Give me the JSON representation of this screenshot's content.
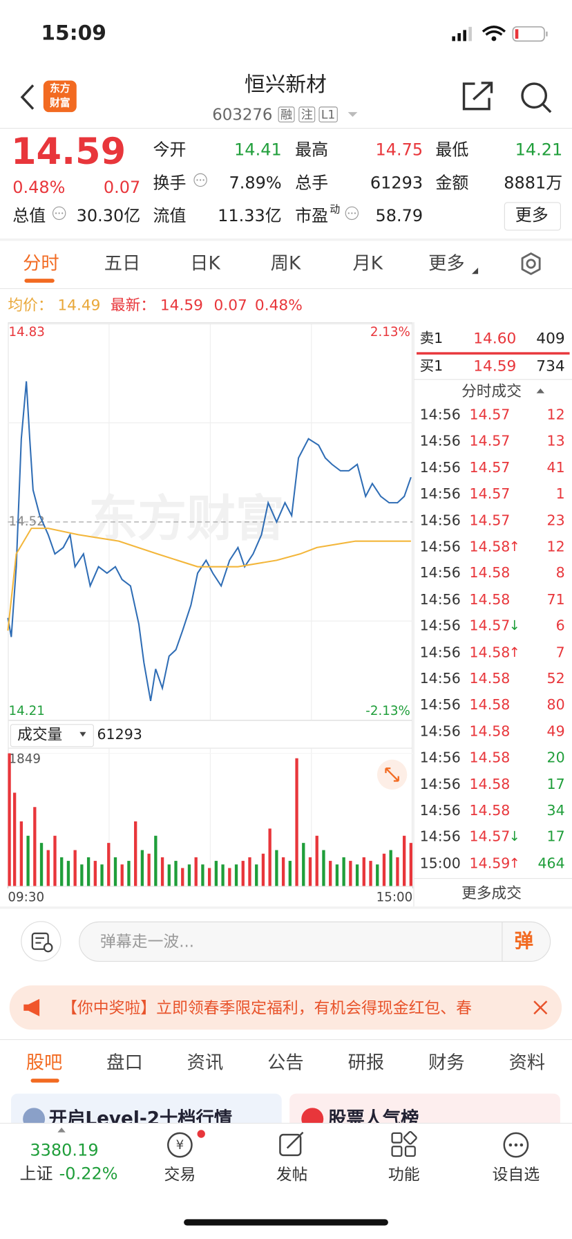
{
  "status_bar": {
    "time": "15:09"
  },
  "header": {
    "logo": [
      "东方",
      "财富"
    ],
    "title": "恒兴新材",
    "code": "603276",
    "badges": [
      "融",
      "注",
      "L1"
    ]
  },
  "quote": {
    "price": "14.59",
    "change_pct": "0.48%",
    "change": "0.07",
    "fields": [
      {
        "label": "今开",
        "value": "14.41"
      },
      {
        "label": "最高",
        "value": "14.75"
      },
      {
        "label": "最低",
        "value": "14.21"
      },
      {
        "label": "换手",
        "value": "7.89%"
      },
      {
        "label": "总手",
        "value": "61293"
      },
      {
        "label": "金额",
        "value": "8881万"
      },
      {
        "label": "总值",
        "value": "30.30亿"
      },
      {
        "label": "流值",
        "value": "11.33亿"
      },
      {
        "label": "市盈",
        "label_sup": "动",
        "value": "58.79"
      }
    ],
    "more": "更多"
  },
  "tabs": [
    "分时",
    "五日",
    "日K",
    "周K",
    "月K",
    "更多"
  ],
  "summary": {
    "avg_label": "均价：",
    "avg": "14.49",
    "last_label": "最新：",
    "last": "14.59",
    "change": "0.07",
    "change_pct": "0.48%"
  },
  "watermark": "东方财富",
  "chart_data": [
    {
      "type": "line",
      "x": [
        0,
        2,
        5,
        8,
        11,
        13,
        15,
        19,
        24,
        28,
        33,
        37,
        40,
        45,
        49,
        54,
        59,
        64,
        68,
        73,
        78,
        81,
        85,
        88,
        92,
        96,
        100,
        104,
        109,
        113,
        118,
        122,
        127,
        132,
        137,
        141,
        146,
        151,
        155,
        160,
        165,
        169,
        173,
        179,
        185,
        189,
        193,
        198,
        203,
        208,
        213,
        217,
        222,
        227,
        232,
        236,
        240
      ],
      "series": [
        {
          "color": "#2f6db5",
          "values": [
            14.37,
            14.34,
            14.45,
            14.65,
            14.74,
            14.65,
            14.57,
            14.53,
            14.5,
            14.47,
            14.48,
            14.5,
            14.45,
            14.47,
            14.42,
            14.45,
            14.44,
            14.45,
            14.43,
            14.42,
            14.36,
            14.3,
            14.24,
            14.29,
            14.26,
            14.31,
            14.32,
            14.35,
            14.39,
            14.44,
            14.46,
            14.44,
            14.42,
            14.46,
            14.48,
            14.45,
            14.47,
            14.5,
            14.55,
            14.52,
            14.55,
            14.53,
            14.62,
            14.65,
            14.64,
            14.62,
            14.61,
            14.6,
            14.6,
            14.61,
            14.56,
            14.58,
            14.56,
            14.55,
            14.55,
            14.56,
            14.59
          ]
        },
        {
          "color": "#f3b63a",
          "x": [
            0,
            5,
            14,
            24,
            42,
            66,
            89,
            113,
            137,
            160,
            174,
            184,
            207,
            240
          ],
          "values": [
            14.35,
            14.47,
            14.51,
            14.51,
            14.5,
            14.49,
            14.47,
            14.45,
            14.45,
            14.46,
            14.47,
            14.48,
            14.49,
            14.49
          ]
        }
      ],
      "xlim": [
        0,
        241
      ],
      "ylim": [
        14.21,
        14.83
      ],
      "yticks": [
        14.21,
        14.52,
        14.83
      ],
      "y2lim": [
        -2.13,
        2.13
      ],
      "y2ticks": [
        {
          "value": -2.13,
          "label": "-2.13%"
        },
        {
          "value": 2.13,
          "label": "2.13%"
        }
      ]
    },
    {
      "type": "bar",
      "title": "成交量",
      "total": "61293",
      "x": [
        0,
        4,
        8,
        12,
        16,
        20,
        24,
        28,
        32,
        36,
        40,
        44,
        48,
        52,
        56,
        60,
        64,
        68,
        72,
        76,
        80,
        84,
        88,
        92,
        96,
        100,
        104,
        108,
        112,
        116,
        120,
        124,
        128,
        132,
        136,
        140,
        144,
        148,
        152,
        156,
        160,
        164,
        168,
        172,
        176,
        180,
        184,
        188,
        192,
        196,
        200,
        204,
        208,
        212,
        216,
        220,
        224,
        228,
        232,
        236,
        240
      ],
      "values": [
        1849,
        1300,
        900,
        700,
        1100,
        600,
        500,
        700,
        400,
        350,
        500,
        300,
        400,
        350,
        300,
        600,
        400,
        300,
        350,
        900,
        500,
        450,
        700,
        400,
        300,
        350,
        250,
        300,
        400,
        300,
        250,
        350,
        300,
        250,
        300,
        350,
        400,
        300,
        450,
        800,
        500,
        400,
        350,
        1780,
        600,
        400,
        700,
        500,
        350,
        300,
        400,
        350,
        300,
        400,
        350,
        300,
        450,
        500,
        400,
        700,
        600
      ],
      "up": [
        1,
        1,
        1,
        0,
        1,
        0,
        1,
        1,
        0,
        0,
        1,
        0,
        0,
        1,
        0,
        1,
        0,
        1,
        0,
        1,
        0,
        1,
        0,
        1,
        0,
        0,
        1,
        0,
        1,
        0,
        1,
        0,
        0,
        1,
        0,
        1,
        1,
        0,
        1,
        1,
        0,
        1,
        0,
        1,
        0,
        1,
        1,
        0,
        1,
        0,
        0,
        1,
        0,
        1,
        1,
        0,
        1,
        0,
        1,
        1,
        1
      ],
      "xlim": [
        0,
        241
      ],
      "ylim": [
        0,
        1849
      ],
      "yticks": [
        1849
      ],
      "xticks": [
        {
          "value": 0,
          "label": "09:30"
        },
        {
          "value": 241,
          "label": "15:00"
        }
      ]
    }
  ],
  "order_book": {
    "sell": {
      "label": "卖1",
      "price": "14.60",
      "volume": "409"
    },
    "buy": {
      "label": "买1",
      "price": "14.59",
      "volume": "734"
    }
  },
  "trades": {
    "title": "分时成交",
    "more": "更多成交",
    "rows": [
      {
        "time": "14:56",
        "price": "14.57",
        "volume": "12",
        "color": "red"
      },
      {
        "time": "14:56",
        "price": "14.57",
        "volume": "13",
        "color": "red"
      },
      {
        "time": "14:56",
        "price": "14.57",
        "volume": "41",
        "color": "red"
      },
      {
        "time": "14:56",
        "price": "14.57",
        "volume": "1",
        "color": "red"
      },
      {
        "time": "14:56",
        "price": "14.57",
        "volume": "23",
        "color": "red"
      },
      {
        "time": "14:56",
        "price": "14.58",
        "arrow": "↑",
        "volume": "12",
        "color": "red"
      },
      {
        "time": "14:56",
        "price": "14.58",
        "volume": "8",
        "color": "red"
      },
      {
        "time": "14:56",
        "price": "14.58",
        "volume": "71",
        "color": "red"
      },
      {
        "time": "14:56",
        "price": "14.57",
        "arrow": "↓",
        "volume": "6",
        "color": "red"
      },
      {
        "time": "14:56",
        "price": "14.58",
        "arrow": "↑",
        "volume": "7",
        "color": "red"
      },
      {
        "time": "14:56",
        "price": "14.58",
        "volume": "52",
        "color": "red"
      },
      {
        "time": "14:56",
        "price": "14.58",
        "volume": "80",
        "color": "red"
      },
      {
        "time": "14:56",
        "price": "14.58",
        "volume": "49",
        "color": "red"
      },
      {
        "time": "14:56",
        "price": "14.58",
        "volume": "20",
        "color": "green"
      },
      {
        "time": "14:56",
        "price": "14.58",
        "volume": "17",
        "color": "green"
      },
      {
        "time": "14:56",
        "price": "14.58",
        "volume": "34",
        "color": "green"
      },
      {
        "time": "14:56",
        "price": "14.57",
        "arrow": "↓",
        "volume": "17",
        "color": "green"
      },
      {
        "time": "15:00",
        "price": "14.59",
        "arrow": "↑",
        "volume": "464",
        "color": "green"
      }
    ]
  },
  "danmaku": {
    "placeholder": "弹幕走一波...",
    "button": "弹"
  },
  "banner": {
    "text": "【你中奖啦】立即领春季限定福利，有机会得现金红包、春"
  },
  "section_tabs": [
    "股吧",
    "盘口",
    "资讯",
    "公告",
    "研报",
    "财务",
    "资料"
  ],
  "cards": [
    "开启Level-2十档行情",
    "股票人气榜"
  ],
  "bottom_nav": {
    "index": {
      "value": "3380.19",
      "name": "上证",
      "change": "-0.22%"
    },
    "items": [
      "交易",
      "发帖",
      "功能",
      "设自选"
    ]
  }
}
